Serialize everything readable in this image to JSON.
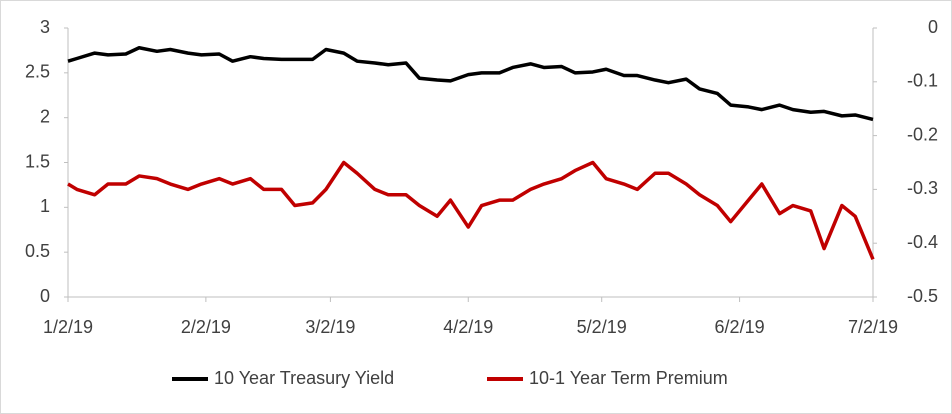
{
  "chart_data": {
    "type": "line",
    "x": [
      "1/2/19",
      "1/4/19",
      "1/8/19",
      "1/11/19",
      "1/15/19",
      "1/18/19",
      "1/22/19",
      "1/25/19",
      "1/29/19",
      "2/1/19",
      "2/5/19",
      "2/8/19",
      "2/12/19",
      "2/15/19",
      "2/19/19",
      "2/22/19",
      "2/26/19",
      "3/1/19",
      "3/5/19",
      "3/8/19",
      "3/12/19",
      "3/15/19",
      "3/19/19",
      "3/22/19",
      "3/26/19",
      "3/29/19",
      "4/2/19",
      "4/5/19",
      "4/9/19",
      "4/12/19",
      "4/16/19",
      "4/19/19",
      "4/23/19",
      "4/26/19",
      "4/30/19",
      "5/3/19",
      "5/7/19",
      "5/10/19",
      "5/14/19",
      "5/17/19",
      "5/21/19",
      "5/24/19",
      "5/28/19",
      "5/31/19",
      "6/4/19",
      "6/7/19",
      "6/11/19",
      "6/14/19",
      "6/18/19",
      "6/21/19",
      "6/25/19",
      "6/28/19",
      "7/2/19"
    ],
    "series": [
      {
        "name": "10 Year Treasury Yield",
        "color": "#000000",
        "axis": "y",
        "values": [
          2.63,
          2.66,
          2.72,
          2.7,
          2.71,
          2.78,
          2.74,
          2.76,
          2.72,
          2.7,
          2.71,
          2.63,
          2.68,
          2.66,
          2.65,
          2.65,
          2.65,
          2.76,
          2.72,
          2.63,
          2.61,
          2.59,
          2.61,
          2.44,
          2.42,
          2.41,
          2.48,
          2.5,
          2.5,
          2.56,
          2.6,
          2.56,
          2.57,
          2.5,
          2.51,
          2.54,
          2.47,
          2.47,
          2.42,
          2.39,
          2.43,
          2.32,
          2.27,
          2.14,
          2.12,
          2.09,
          2.14,
          2.09,
          2.06,
          2.07,
          2.02,
          2.03,
          1.98
        ]
      },
      {
        "name": "10-1 Year Term Premium",
        "color": "#c00000",
        "axis": "y2",
        "values": [
          -0.29,
          -0.3,
          -0.31,
          -0.29,
          -0.29,
          -0.275,
          -0.28,
          -0.29,
          -0.3,
          -0.29,
          -0.28,
          -0.29,
          -0.28,
          -0.3,
          -0.3,
          -0.33,
          -0.325,
          -0.3,
          -0.25,
          -0.27,
          -0.3,
          -0.31,
          -0.31,
          -0.33,
          -0.35,
          -0.32,
          -0.37,
          -0.33,
          -0.32,
          -0.32,
          -0.3,
          -0.29,
          -0.28,
          -0.265,
          -0.25,
          -0.28,
          -0.29,
          -0.3,
          -0.27,
          -0.27,
          -0.29,
          -0.31,
          -0.33,
          -0.36,
          -0.32,
          -0.29,
          -0.345,
          -0.33,
          -0.34,
          -0.41,
          -0.33,
          -0.35,
          -0.43
        ]
      }
    ],
    "xlim": [
      "1/2/19",
      "7/2/19"
    ],
    "xticks": [
      "1/2/19",
      "2/2/19",
      "3/2/19",
      "4/2/19",
      "5/2/19",
      "6/2/19",
      "7/2/19"
    ],
    "ylim": [
      0,
      3
    ],
    "yticks": [
      0,
      0.5,
      1,
      1.5,
      2,
      2.5,
      3
    ],
    "y2lim": [
      -0.5,
      0
    ],
    "y2ticks": [
      -0.5,
      -0.4,
      -0.3,
      -0.2,
      -0.1,
      0
    ],
    "grid": false,
    "legend_position": "bottom"
  }
}
